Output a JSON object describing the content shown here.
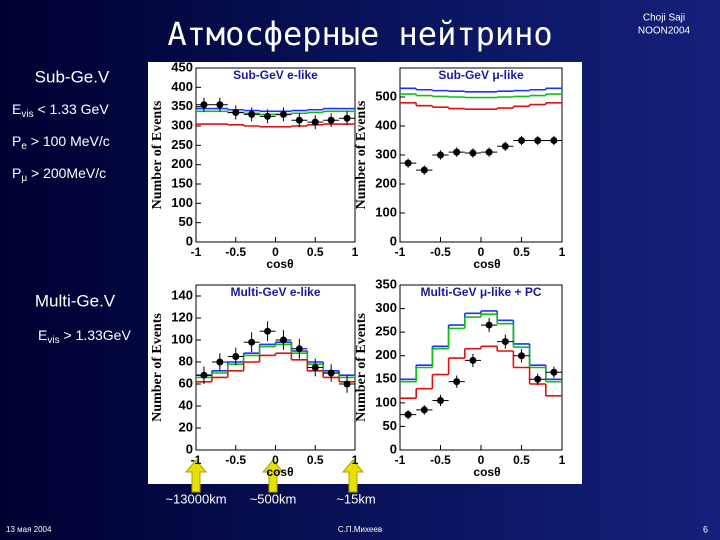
{
  "slide": {
    "title": "Атмосферные нейтрино",
    "author": "Choji Saji",
    "conference": "NOON2004",
    "subgev": {
      "heading": "Sub-Ge.V",
      "evis": {
        "main": "E",
        "sub": "vis",
        "rest": " < 1.33 GeV"
      },
      "pe": {
        "main": "P",
        "sub": "e",
        "rest": " > 100 MeV/c"
      },
      "pmu": {
        "main": "P",
        "sub": "μ",
        "rest": " > 200MeV/c"
      }
    },
    "multigev": {
      "heading": "Multi-Ge.V",
      "evis": {
        "main": "E",
        "sub": "vis",
        "rest": " > 1.33GeV"
      }
    },
    "distances": [
      "~13000km",
      "~500km",
      "~15km"
    ],
    "date": "13 мая 2004",
    "presenter": "С.П.Михеев",
    "page": "6"
  },
  "chart_data": [
    {
      "type": "histogram",
      "title": "Sub-GeV e-like",
      "x_label": "cosθ",
      "y_label": "Number of Events",
      "bins": [
        -1,
        -0.8,
        -0.6,
        -0.4,
        -0.2,
        0,
        0.2,
        0.4,
        0.6,
        0.8,
        1
      ],
      "xlim": [
        -1,
        1
      ],
      "xticks": [
        -1,
        -0.5,
        0,
        0.5,
        1
      ],
      "ylim": [
        0,
        450
      ],
      "yticks": [
        0,
        50,
        100,
        150,
        200,
        250,
        300,
        350,
        400,
        450
      ],
      "series": [
        {
          "color": "#2030ff",
          "values": [
            345,
            345,
            342,
            340,
            338,
            338,
            340,
            342,
            345,
            345
          ]
        },
        {
          "color": "#10c010",
          "values": [
            338,
            338,
            335,
            333,
            330,
            330,
            333,
            335,
            338,
            338
          ]
        },
        {
          "color": "#e01010",
          "values": [
            305,
            305,
            303,
            300,
            298,
            298,
            300,
            303,
            305,
            305
          ]
        }
      ],
      "points": {
        "color": "#000000",
        "values": [
          355,
          355,
          335,
          330,
          325,
          330,
          315,
          310,
          315,
          320
        ],
        "errors": [
          18,
          18,
          18,
          18,
          18,
          18,
          18,
          18,
          18,
          18
        ]
      }
    },
    {
      "type": "histogram",
      "title": "Sub-GeV μ-like",
      "x_label": "cosθ",
      "y_label": "Number of Events",
      "bins": [
        -1,
        -0.8,
        -0.6,
        -0.4,
        -0.2,
        0,
        0.2,
        0.4,
        0.6,
        0.8,
        1
      ],
      "xlim": [
        -1,
        1
      ],
      "xticks": [
        -1,
        -0.5,
        0,
        0.5,
        1
      ],
      "ylim": [
        0,
        600
      ],
      "yticks": [
        0,
        100,
        200,
        300,
        400,
        500
      ],
      "series": [
        {
          "color": "#2030ff",
          "values": [
            530,
            525,
            522,
            520,
            518,
            518,
            520,
            522,
            525,
            530
          ]
        },
        {
          "color": "#10c010",
          "values": [
            510,
            505,
            502,
            500,
            498,
            498,
            500,
            502,
            505,
            510
          ]
        },
        {
          "color": "#e01010",
          "values": [
            480,
            470,
            465,
            460,
            458,
            458,
            462,
            468,
            474,
            480
          ]
        }
      ],
      "points": {
        "color": "#000000",
        "values": [
          272,
          248,
          300,
          310,
          307,
          310,
          330,
          350,
          350,
          350
        ],
        "errors": [
          16,
          16,
          16,
          16,
          16,
          16,
          16,
          16,
          16,
          16
        ]
      }
    },
    {
      "type": "histogram",
      "title": "Multi-GeV e-like",
      "x_label": "cosθ",
      "y_label": "Number of Events",
      "bins": [
        -1,
        -0.8,
        -0.6,
        -0.4,
        -0.2,
        0,
        0.2,
        0.4,
        0.6,
        0.8,
        1
      ],
      "xlim": [
        -1,
        1
      ],
      "xticks": [
        -1,
        -0.5,
        0,
        0.5,
        1
      ],
      "ylim": [
        0,
        150
      ],
      "yticks": [
        0,
        20,
        40,
        60,
        80,
        100,
        120,
        140
      ],
      "series": [
        {
          "color": "#2030ff",
          "values": [
            68,
            72,
            80,
            88,
            96,
            98,
            90,
            80,
            72,
            68
          ]
        },
        {
          "color": "#10c010",
          "values": [
            66,
            70,
            78,
            86,
            94,
            96,
            88,
            78,
            70,
            66
          ]
        },
        {
          "color": "#e01010",
          "values": [
            62,
            66,
            72,
            80,
            86,
            88,
            82,
            72,
            66,
            62
          ]
        }
      ],
      "points": {
        "color": "#000000",
        "values": [
          68,
          80,
          85,
          98,
          108,
          100,
          92,
          75,
          70,
          60
        ],
        "errors": [
          8,
          8,
          8,
          9,
          9,
          9,
          9,
          8,
          8,
          8
        ]
      }
    },
    {
      "type": "histogram",
      "title": "Multi-GeV μ-like + PC",
      "x_label": "cosθ",
      "y_label": "Number of Events",
      "bins": [
        -1,
        -0.8,
        -0.6,
        -0.4,
        -0.2,
        0,
        0.2,
        0.4,
        0.6,
        0.8,
        1
      ],
      "xlim": [
        -1,
        1
      ],
      "xticks": [
        -1,
        -0.5,
        0,
        0.5,
        1
      ],
      "ylim": [
        0,
        350
      ],
      "yticks": [
        0,
        50,
        100,
        150,
        200,
        250,
        300,
        350
      ],
      "series": [
        {
          "color": "#2030ff",
          "values": [
            150,
            180,
            220,
            265,
            290,
            295,
            275,
            225,
            180,
            150
          ]
        },
        {
          "color": "#10c010",
          "values": [
            145,
            175,
            215,
            258,
            282,
            288,
            268,
            218,
            175,
            145
          ]
        },
        {
          "color": "#e01010",
          "values": [
            110,
            130,
            160,
            195,
            215,
            220,
            210,
            175,
            140,
            115
          ]
        }
      ],
      "points": {
        "color": "#000000",
        "values": [
          75,
          85,
          105,
          145,
          190,
          265,
          230,
          200,
          150,
          165
        ],
        "errors": [
          10,
          10,
          12,
          13,
          14,
          15,
          15,
          14,
          12,
          12
        ]
      }
    }
  ]
}
